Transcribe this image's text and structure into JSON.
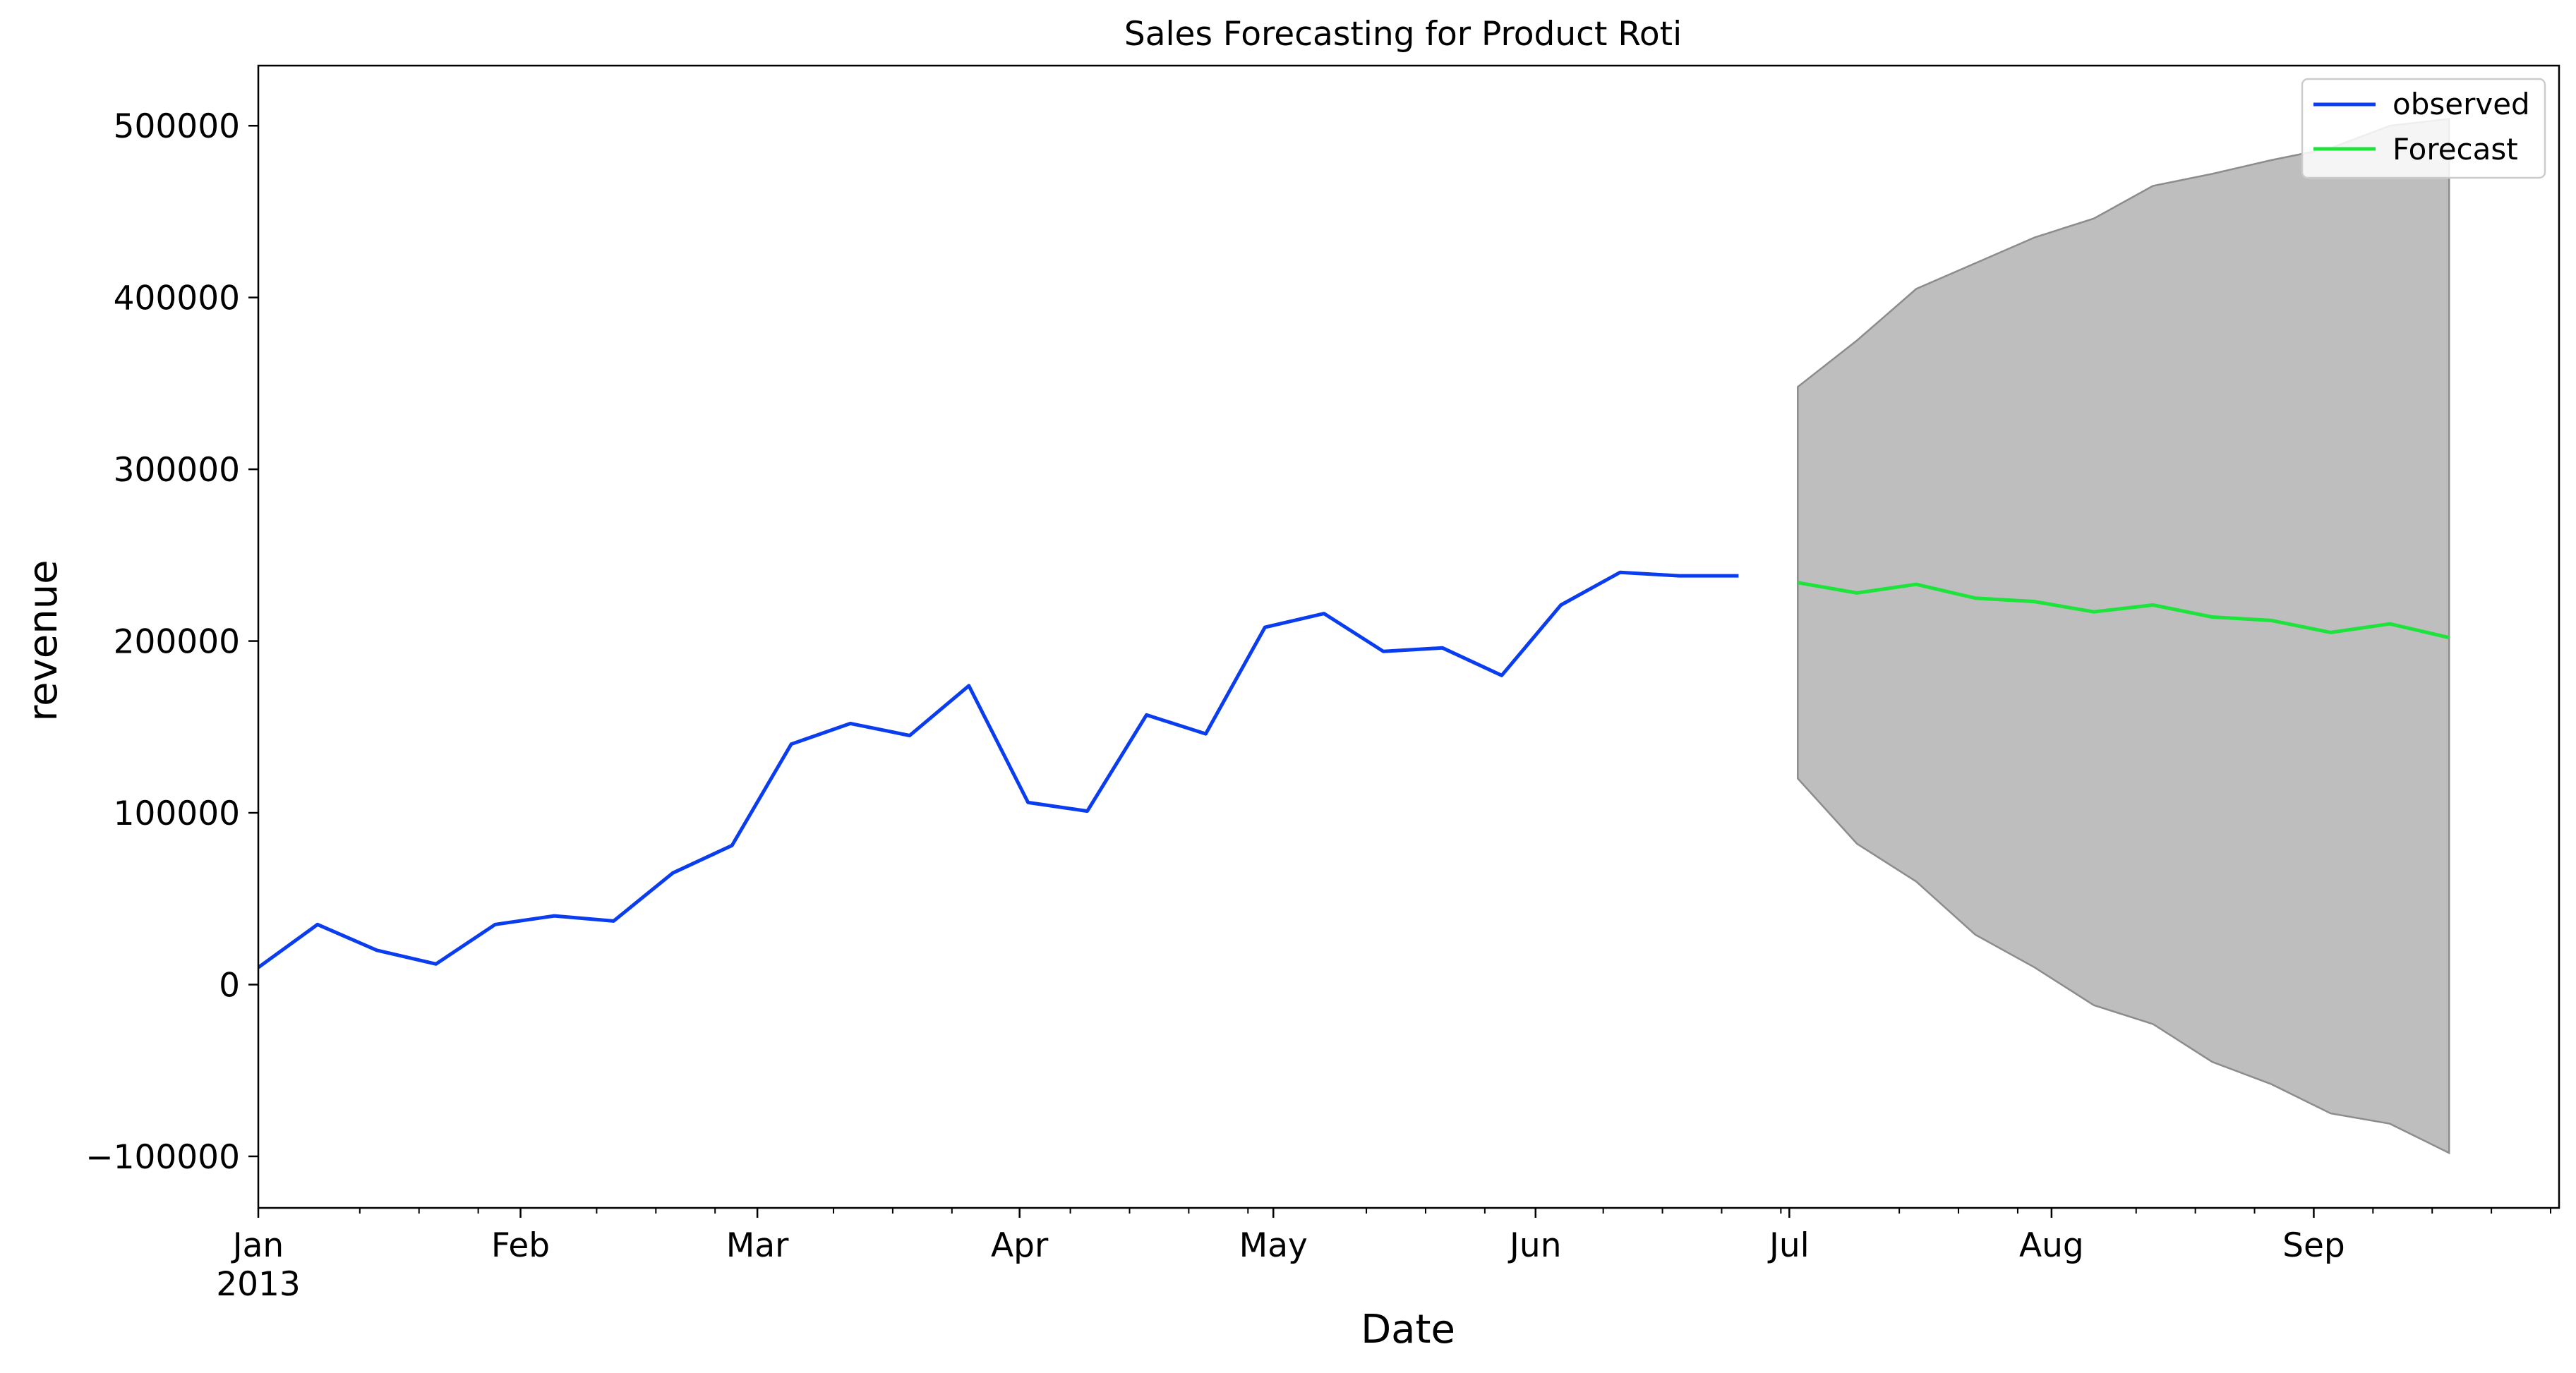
{
  "chart_data": {
    "type": "line",
    "title": "Sales Forecasting for Product Roti",
    "xlabel": "Date",
    "ylabel": "revenue",
    "x_range": [
      "2013-01-01",
      "2013-09-30"
    ],
    "ylim": [
      -130000,
      535000
    ],
    "grid": false,
    "legend_position": "top-right",
    "y_ticks": [
      {
        "value": -100000,
        "label": "−100000"
      },
      {
        "value": 0,
        "label": "0"
      },
      {
        "value": 100000,
        "label": "100000"
      },
      {
        "value": 200000,
        "label": "200000"
      },
      {
        "value": 300000,
        "label": "300000"
      },
      {
        "value": 400000,
        "label": "400000"
      },
      {
        "value": 500000,
        "label": "500000"
      }
    ],
    "x_major_ticks": [
      {
        "date": "2013-01-01",
        "label": "Jan",
        "sublabel": "2013"
      },
      {
        "date": "2013-02-01",
        "label": "Feb"
      },
      {
        "date": "2013-03-01",
        "label": "Mar"
      },
      {
        "date": "2013-04-01",
        "label": "Apr"
      },
      {
        "date": "2013-05-01",
        "label": "May"
      },
      {
        "date": "2013-06-01",
        "label": "Jun"
      },
      {
        "date": "2013-07-01",
        "label": "Jul"
      },
      {
        "date": "2013-08-01",
        "label": "Aug"
      },
      {
        "date": "2013-09-01",
        "label": "Sep"
      }
    ],
    "x_minor_ticks": [
      "2013-01-13",
      "2013-01-20",
      "2013-01-27",
      "2013-02-10",
      "2013-02-17",
      "2013-02-24",
      "2013-03-10",
      "2013-03-17",
      "2013-03-24",
      "2013-04-07",
      "2013-04-14",
      "2013-04-21",
      "2013-04-28",
      "2013-05-12",
      "2013-05-19",
      "2013-05-26",
      "2013-06-09",
      "2013-06-16",
      "2013-06-23",
      "2013-06-30",
      "2013-07-14",
      "2013-07-21",
      "2013-07-28",
      "2013-08-11",
      "2013-08-18",
      "2013-08-25",
      "2013-09-08",
      "2013-09-15",
      "2013-09-22",
      "2013-09-29"
    ],
    "series": [
      {
        "name": "observed",
        "color": "#0a3cf0",
        "points": [
          {
            "x": "2013-01-01",
            "y": 10000
          },
          {
            "x": "2013-01-08",
            "y": 35000
          },
          {
            "x": "2013-01-15",
            "y": 20000
          },
          {
            "x": "2013-01-22",
            "y": 12000
          },
          {
            "x": "2013-01-29",
            "y": 35000
          },
          {
            "x": "2013-02-05",
            "y": 40000
          },
          {
            "x": "2013-02-12",
            "y": 37000
          },
          {
            "x": "2013-02-19",
            "y": 65000
          },
          {
            "x": "2013-02-26",
            "y": 81000
          },
          {
            "x": "2013-03-05",
            "y": 140000
          },
          {
            "x": "2013-03-12",
            "y": 152000
          },
          {
            "x": "2013-03-19",
            "y": 145000
          },
          {
            "x": "2013-03-26",
            "y": 174000
          },
          {
            "x": "2013-04-02",
            "y": 106000
          },
          {
            "x": "2013-04-09",
            "y": 101000
          },
          {
            "x": "2013-04-16",
            "y": 157000
          },
          {
            "x": "2013-04-23",
            "y": 146000
          },
          {
            "x": "2013-04-30",
            "y": 208000
          },
          {
            "x": "2013-05-07",
            "y": 216000
          },
          {
            "x": "2013-05-14",
            "y": 194000
          },
          {
            "x": "2013-05-21",
            "y": 196000
          },
          {
            "x": "2013-05-28",
            "y": 180000
          },
          {
            "x": "2013-06-04",
            "y": 221000
          },
          {
            "x": "2013-06-11",
            "y": 240000
          },
          {
            "x": "2013-06-18",
            "y": 238000
          },
          {
            "x": "2013-06-25",
            "y": 238000
          }
        ]
      },
      {
        "name": "Forecast",
        "color": "#1ee33c",
        "points": [
          {
            "x": "2013-07-02",
            "y": 234000
          },
          {
            "x": "2013-07-09",
            "y": 228000
          },
          {
            "x": "2013-07-16",
            "y": 233000
          },
          {
            "x": "2013-07-23",
            "y": 225000
          },
          {
            "x": "2013-07-30",
            "y": 223000
          },
          {
            "x": "2013-08-06",
            "y": 217000
          },
          {
            "x": "2013-08-13",
            "y": 221000
          },
          {
            "x": "2013-08-20",
            "y": 214000
          },
          {
            "x": "2013-08-27",
            "y": 212000
          },
          {
            "x": "2013-09-03",
            "y": 205000
          },
          {
            "x": "2013-09-10",
            "y": 210000
          },
          {
            "x": "2013-09-17",
            "y": 202000
          }
        ]
      }
    ],
    "confidence_band": {
      "color": "#bebebe",
      "edge_color": "#8c8c8c",
      "points": [
        {
          "x": "2013-07-02",
          "lower": 120000,
          "upper": 348000
        },
        {
          "x": "2013-07-09",
          "lower": 82000,
          "upper": 375000
        },
        {
          "x": "2013-07-16",
          "lower": 60000,
          "upper": 405000
        },
        {
          "x": "2013-07-23",
          "lower": 29000,
          "upper": 420000
        },
        {
          "x": "2013-07-30",
          "lower": 10000,
          "upper": 435000
        },
        {
          "x": "2013-08-06",
          "lower": -12000,
          "upper": 446000
        },
        {
          "x": "2013-08-13",
          "lower": -23000,
          "upper": 465000
        },
        {
          "x": "2013-08-20",
          "lower": -45000,
          "upper": 472000
        },
        {
          "x": "2013-08-27",
          "lower": -58000,
          "upper": 480000
        },
        {
          "x": "2013-09-03",
          "lower": -75000,
          "upper": 487000
        },
        {
          "x": "2013-09-10",
          "lower": -81000,
          "upper": 500000
        },
        {
          "x": "2013-09-17",
          "lower": -98000,
          "upper": 504000
        }
      ]
    }
  }
}
